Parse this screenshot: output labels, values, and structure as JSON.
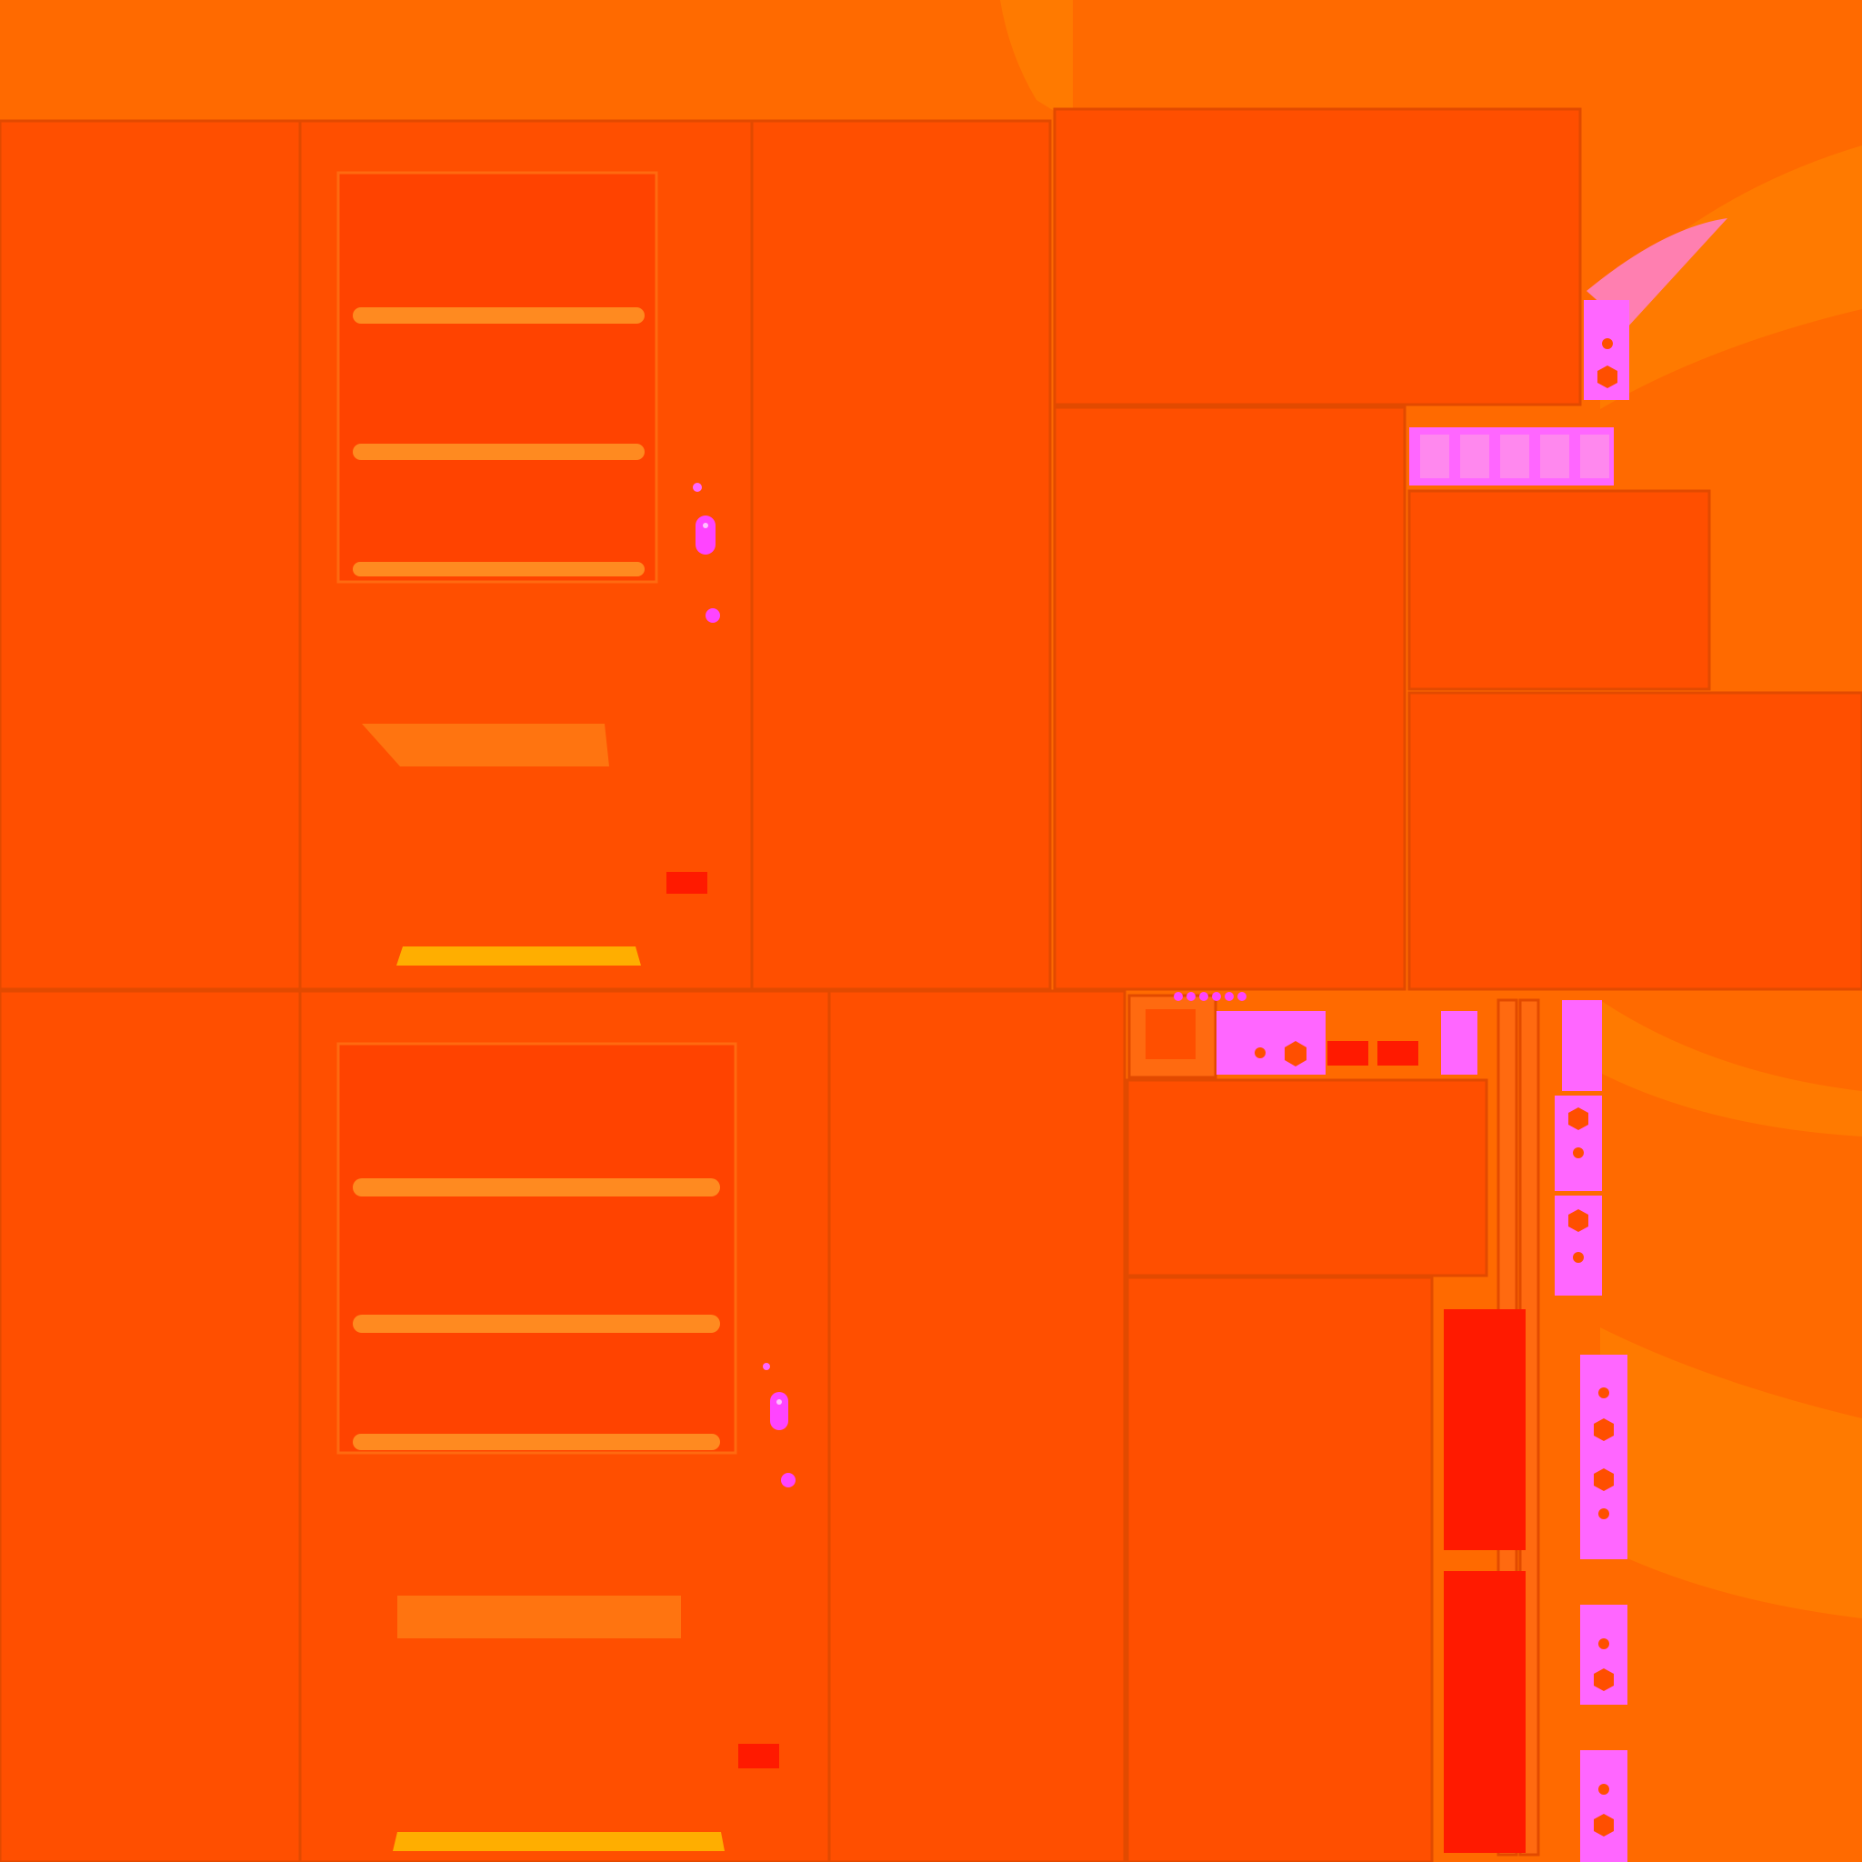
{
  "palette": {
    "background": "#ff6a00",
    "panel": "#ff4f00",
    "panel_edge": "#e24a00",
    "window": "#ff4300",
    "shelf": "#ff8a20",
    "label_plate": "#ff7410",
    "kick_plate": "#ffae00",
    "indicator": "#ff1a00",
    "pink": "#ff66ff",
    "light_pink": "#ff88dd",
    "flare": "#ff7a00"
  },
  "texture": {
    "name": "vending-machine-uv-atlas",
    "vending_faces": 2,
    "window_shelves": 3,
    "has_text": false
  }
}
